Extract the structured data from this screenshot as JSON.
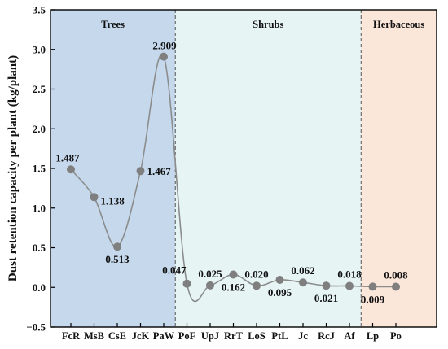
{
  "chart_data": {
    "type": "line",
    "ylabel": "Dust retention capacity per plant (kg/plant)",
    "xlabel": "",
    "ylim": [
      -0.5,
      3.5
    ],
    "yticks": [
      -0.5,
      0.0,
      0.5,
      1.0,
      1.5,
      2.0,
      2.5,
      3.0,
      3.5
    ],
    "ytick_labels": [
      "−0.5",
      "0.0",
      "0.5",
      "1.0",
      "1.5",
      "2.0",
      "2.5",
      "3.0",
      "3.5"
    ],
    "categories": [
      "FcR",
      "MsB",
      "CsE",
      "JcK",
      "PaW",
      "PoF",
      "UpJ",
      "RrT",
      "LoS",
      "PtL",
      "Jc",
      "RcJ",
      "Af",
      "Lp",
      "Po"
    ],
    "values": [
      1.487,
      1.138,
      0.513,
      1.467,
      2.909,
      0.047,
      0.025,
      0.162,
      0.02,
      0.095,
      0.062,
      0.021,
      0.018,
      0.009,
      0.008
    ],
    "data_labels": [
      "1.487",
      "1.138",
      "0.513",
      "1.467",
      "2.909",
      "0.047",
      "0.025",
      "0.162",
      "0.020",
      "0.095",
      "0.062",
      "0.021",
      "0.018",
      "0.009",
      "0.008"
    ],
    "grid": false,
    "regions": [
      {
        "label": "Trees",
        "start": 0,
        "end": 4,
        "color": "#c5d8ec"
      },
      {
        "label": "Shrubs",
        "start": 5,
        "end": 12,
        "color": "#e6f4f4"
      },
      {
        "label": "Herbaceous",
        "start": 13,
        "end": 14,
        "color": "#fbe6da"
      }
    ],
    "colors": {
      "line": "#8c8c8c",
      "marker": "#7f7f7f",
      "divider": "#555555",
      "axis": "#000000"
    }
  }
}
